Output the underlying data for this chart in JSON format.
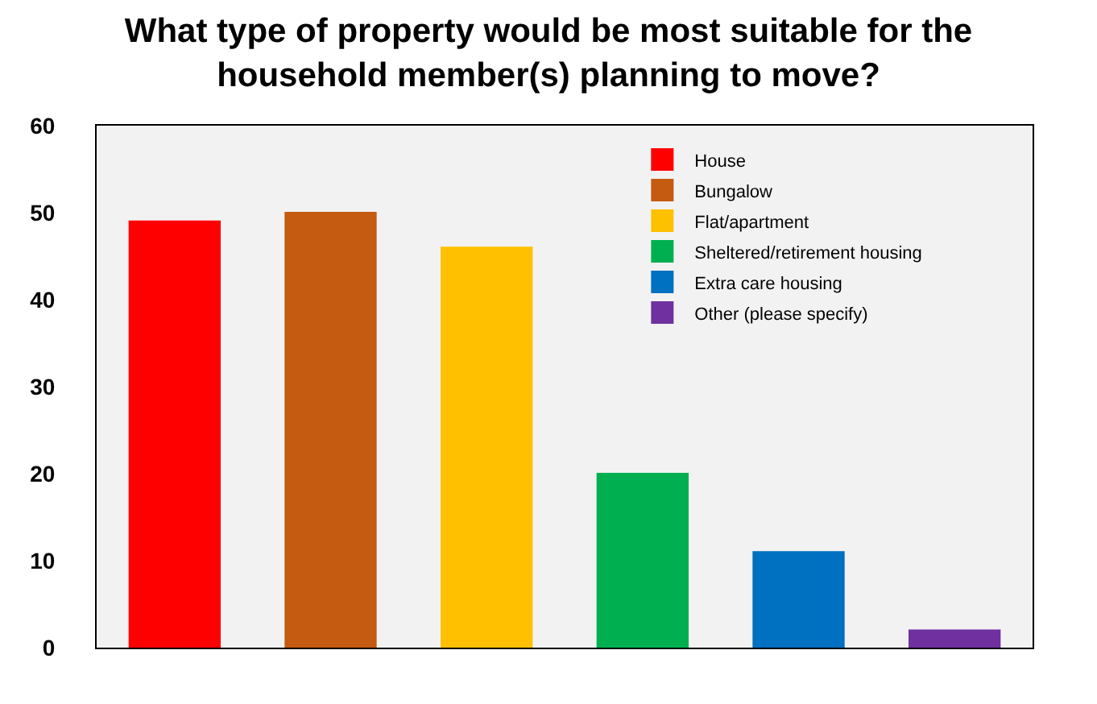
{
  "chart_data": {
    "type": "bar",
    "title": "What type of property would be most suitable for the household member(s) planning to move?",
    "categories": [
      null,
      null,
      null,
      null,
      null,
      null
    ],
    "series": [
      {
        "name": "House",
        "color": "#ff0000",
        "values": [
          49,
          null,
          null,
          null,
          null,
          null
        ]
      },
      {
        "name": "Bungalow",
        "color": "#c55a11",
        "values": [
          null,
          50,
          null,
          null,
          null,
          null
        ]
      },
      {
        "name": "Flat/apartment",
        "color": "#ffc000",
        "values": [
          null,
          null,
          46,
          null,
          null,
          null
        ]
      },
      {
        "name": "Sheltered/retirement housing",
        "color": "#00b050",
        "values": [
          null,
          null,
          null,
          20,
          null,
          null
        ]
      },
      {
        "name": "Extra care housing",
        "color": "#0070c0",
        "values": [
          null,
          null,
          null,
          null,
          11,
          null
        ]
      },
      {
        "name": "Other (please specify)",
        "color": "#7030a0",
        "values": [
          null,
          null,
          null,
          null,
          null,
          2
        ]
      }
    ],
    "ylim": [
      0,
      60
    ],
    "yticks": [
      0,
      10,
      20,
      30,
      40,
      50,
      60
    ],
    "grid": false,
    "legend": "top right",
    "tick_labels": "y"
  }
}
